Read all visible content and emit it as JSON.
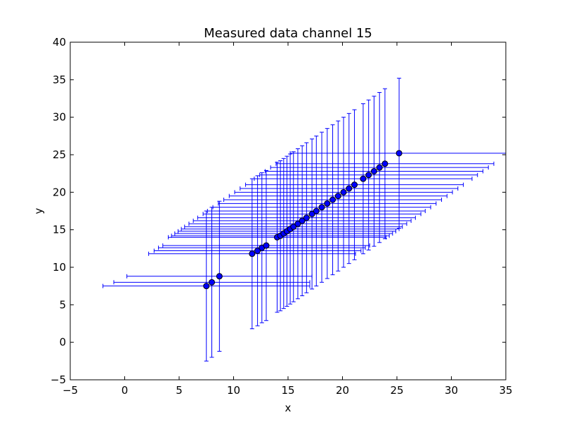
{
  "chart_data": {
    "type": "scatter",
    "title": "Measured data channel 15",
    "xlabel": "x",
    "ylabel": "y",
    "xlim": [
      -5,
      35
    ],
    "ylim": [
      -5,
      40
    ],
    "xticks": [
      -5,
      0,
      5,
      10,
      15,
      20,
      25,
      30,
      35
    ],
    "yticks": [
      -5,
      0,
      5,
      10,
      15,
      20,
      25,
      30,
      35,
      40
    ],
    "grid": false,
    "colors": {
      "errorbar": "#0000ff",
      "marker_fill": "#0000ff",
      "marker_edge": "#000000",
      "frame": "#000000"
    },
    "series": [
      {
        "points": [
          {
            "x": 7.5,
            "y": 7.5,
            "xerr": 9.5,
            "yerr": 10.0
          },
          {
            "x": 8.0,
            "y": 8.0,
            "xerr": 9.0,
            "yerr": 10.0
          },
          {
            "x": 8.7,
            "y": 8.8,
            "xerr": 8.5,
            "yerr": 10.0
          },
          {
            "x": 11.7,
            "y": 11.8,
            "xerr": 9.5,
            "yerr": 10.0
          },
          {
            "x": 12.2,
            "y": 12.2,
            "xerr": 9.5,
            "yerr": 10.0
          },
          {
            "x": 12.6,
            "y": 12.6,
            "xerr": 9.5,
            "yerr": 10.0
          },
          {
            "x": 13.0,
            "y": 12.9,
            "xerr": 9.5,
            "yerr": 10.0
          },
          {
            "x": 14.0,
            "y": 14.0,
            "xerr": 10.0,
            "yerr": 10.0
          },
          {
            "x": 14.3,
            "y": 14.2,
            "xerr": 10.0,
            "yerr": 10.0
          },
          {
            "x": 14.6,
            "y": 14.5,
            "xerr": 10.0,
            "yerr": 10.0
          },
          {
            "x": 14.9,
            "y": 14.8,
            "xerr": 10.0,
            "yerr": 10.0
          },
          {
            "x": 15.2,
            "y": 15.1,
            "xerr": 10.0,
            "yerr": 10.0
          },
          {
            "x": 15.5,
            "y": 15.4,
            "xerr": 10.0,
            "yerr": 10.0
          },
          {
            "x": 15.9,
            "y": 15.8,
            "xerr": 10.0,
            "yerr": 10.0
          },
          {
            "x": 16.3,
            "y": 16.2,
            "xerr": 10.0,
            "yerr": 10.0
          },
          {
            "x": 16.7,
            "y": 16.6,
            "xerr": 10.0,
            "yerr": 10.0
          },
          {
            "x": 17.2,
            "y": 17.1,
            "xerr": 10.0,
            "yerr": 10.0
          },
          {
            "x": 17.6,
            "y": 17.5,
            "xerr": 10.0,
            "yerr": 10.0
          },
          {
            "x": 18.1,
            "y": 18.0,
            "xerr": 10.0,
            "yerr": 10.0
          },
          {
            "x": 18.6,
            "y": 18.5,
            "xerr": 10.0,
            "yerr": 10.0
          },
          {
            "x": 19.1,
            "y": 19.0,
            "xerr": 10.0,
            "yerr": 10.0
          },
          {
            "x": 19.6,
            "y": 19.5,
            "xerr": 10.0,
            "yerr": 10.0
          },
          {
            "x": 20.1,
            "y": 20.0,
            "xerr": 10.0,
            "yerr": 10.0
          },
          {
            "x": 20.6,
            "y": 20.5,
            "xerr": 10.0,
            "yerr": 10.0
          },
          {
            "x": 21.1,
            "y": 21.0,
            "xerr": 10.0,
            "yerr": 10.0
          },
          {
            "x": 21.9,
            "y": 21.8,
            "xerr": 10.0,
            "yerr": 10.0
          },
          {
            "x": 22.4,
            "y": 22.3,
            "xerr": 10.0,
            "yerr": 10.0
          },
          {
            "x": 22.9,
            "y": 22.8,
            "xerr": 10.0,
            "yerr": 10.0
          },
          {
            "x": 23.4,
            "y": 23.3,
            "xerr": 10.0,
            "yerr": 10.0
          },
          {
            "x": 23.9,
            "y": 23.8,
            "xerr": 10.0,
            "yerr": 10.0
          },
          {
            "x": 25.2,
            "y": 25.2,
            "xerr": 10.0,
            "yerr": 10.0
          }
        ]
      }
    ]
  }
}
